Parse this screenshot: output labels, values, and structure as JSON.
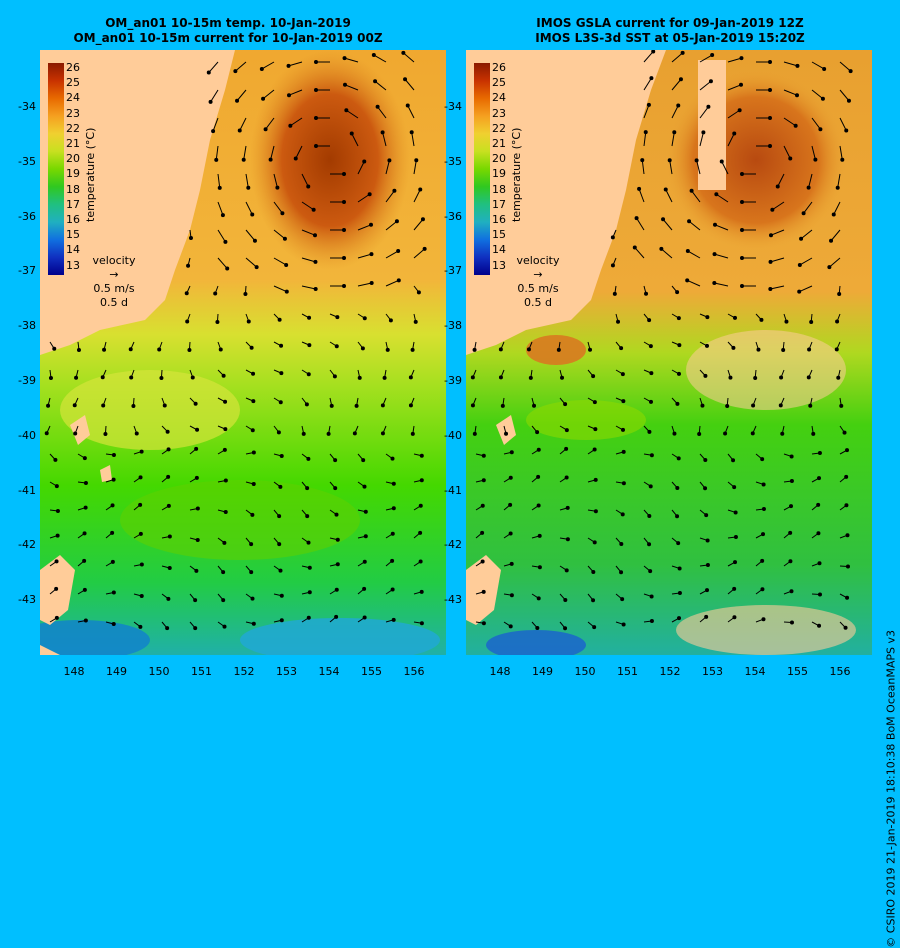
{
  "left_panel": {
    "title_line1": "OM_an01 10-15m temp. 10-Jan-2019",
    "title_line2": "OM_an01 10-15m current for 10-Jan-2019 00Z",
    "colorbar_title": "temperature (°C)",
    "colorbar_ticks": [
      "26",
      "25",
      "24",
      "23",
      "22",
      "21",
      "20",
      "19",
      "18",
      "17",
      "16",
      "15",
      "14",
      "13"
    ],
    "velocity_label": "velocity",
    "velocity_scale": "0.5 m/s",
    "velocity_time": "0.5 d"
  },
  "right_panel": {
    "title_line1": "IMOS GSLA current for 09-Jan-2019 12Z",
    "title_line2": "IMOS L3S-3d SST at 05-Jan-2019 15:20Z",
    "colorbar_title": "temperature (°C)",
    "colorbar_ticks": [
      "26",
      "25",
      "24",
      "23",
      "22",
      "21",
      "20",
      "19",
      "18",
      "17",
      "16",
      "15",
      "14",
      "13"
    ],
    "velocity_label": "velocity",
    "velocity_scale": "0.5 m/s",
    "velocity_time": "0.5 d"
  },
  "y_ticks": [
    "-34",
    "-35",
    "-36",
    "-37",
    "-38",
    "-39",
    "-40",
    "-41",
    "-42",
    "-43"
  ],
  "x_ticks": [
    "148",
    "149",
    "150",
    "151",
    "152",
    "153",
    "154",
    "155",
    "156"
  ],
  "credit": "© CSIRO 2019   21-Jan-2019 18:10:38 BoM OceanMAPS v3",
  "colors": {
    "background": "#00bfff",
    "land": "#ffcc99",
    "colorbar_top": "#8b1a00",
    "colorbar_bottom": "#00008b"
  }
}
